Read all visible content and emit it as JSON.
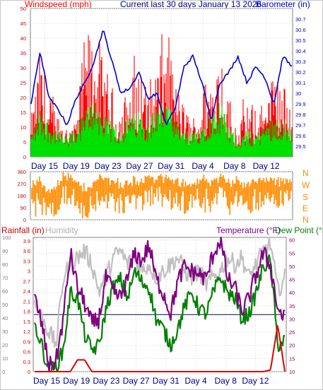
{
  "header": {
    "left_label": "Windspeed (mph)",
    "center_label": "Current last 30 days January 13 2026",
    "right_label": "Barometer (in)"
  },
  "lower_header": {
    "rainfall_label": "Rainfall (in)",
    "humidity_label": "Humidity",
    "temperature_label": "Temperature (°F)",
    "dewpoint_label": "Dew Point (°F)"
  },
  "direction_letters": [
    "N",
    "W",
    "S",
    "E",
    "N"
  ],
  "colors": {
    "wind_gust": "#ff0000",
    "wind_avg": "#00e000",
    "barometer": "#0000cc",
    "direction": "#ff8c00",
    "temperature": "#800080",
    "dewpoint": "#008000",
    "humidity": "#c0c0c0",
    "rainfall": "#e00000",
    "axis_text": "#000080"
  },
  "chart_data": [
    {
      "type": "area",
      "title": "Current last 30 days January 13 2026",
      "x_ticks": [
        "Day 15",
        "Day 19",
        "Day 23",
        "Day 27",
        "Day 31",
        "Day 4",
        "Day 8",
        "Day 12"
      ],
      "left_axis": {
        "label": "Windspeed (mph)",
        "range": [
          0,
          50
        ],
        "ticks": [
          0,
          5,
          10,
          15,
          20,
          25,
          30,
          35,
          40,
          45,
          50
        ]
      },
      "right_axis": {
        "label": "Barometer (in)",
        "range": [
          29.4,
          30.8
        ],
        "ticks": [
          29.5,
          29.6,
          29.7,
          29.8,
          29.9,
          30,
          30.1,
          30.2,
          30.3,
          30.4,
          30.5,
          30.6,
          30.7
        ]
      },
      "series": [
        {
          "name": "Windspeed (mph)",
          "axis": "left",
          "values": [
            13,
            38,
            22,
            17,
            12,
            15,
            42,
            48,
            33,
            24,
            18,
            27,
            31,
            24,
            35,
            47,
            28,
            18,
            14,
            24,
            33,
            43,
            20,
            12,
            18,
            16,
            22,
            30,
            26,
            20
          ]
        },
        {
          "name": "Barometer (in)",
          "axis": "right",
          "values": [
            29.9,
            30.4,
            29.95,
            29.85,
            29.7,
            29.95,
            30.1,
            30.3,
            30.6,
            30.3,
            30.0,
            30.05,
            30.2,
            29.95,
            30.0,
            29.7,
            29.85,
            30.25,
            30.35,
            30.1,
            29.75,
            30.1,
            30.2,
            30.35,
            30.1,
            30.25,
            30.15,
            29.9,
            30.35,
            30.25
          ]
        },
        {
          "name": "",
          "axis": "left",
          "values": [
            6,
            13,
            9,
            7,
            5,
            8,
            12,
            17,
            11,
            9,
            8,
            11,
            12,
            10,
            14,
            16,
            9,
            7,
            6,
            9,
            12,
            15,
            8,
            5,
            7,
            6,
            9,
            11,
            10,
            7
          ]
        }
      ]
    },
    {
      "type": "scatter",
      "title": "",
      "y_range": [
        0,
        360
      ],
      "y_ticks": [
        0,
        90,
        180,
        270,
        360
      ],
      "series": [
        {
          "name": "",
          "values": [
            220,
            250,
            180,
            270,
            300,
            240,
            200,
            260,
            280,
            270,
            230,
            250,
            260,
            300,
            270,
            280,
            260,
            250,
            240,
            270,
            250,
            280,
            260,
            270,
            240,
            250,
            270,
            260,
            250,
            270
          ]
        }
      ]
    },
    {
      "type": "line",
      "title": "",
      "left_axis": {
        "label": "Rainfall (in)",
        "range": [
          0,
          4.0
        ],
        "ticks": [
          0,
          0.3,
          0.6,
          0.9,
          1.2,
          1.5,
          1.8,
          2.1,
          2.4,
          2.7,
          3,
          3.3,
          3.6,
          3.9
        ]
      },
      "humidity_axis": {
        "label": "Humidity",
        "range": [
          0,
          100
        ],
        "ticks": [
          0,
          10,
          20,
          30,
          40,
          50,
          60,
          70,
          80,
          90,
          100
        ]
      },
      "right_axis": {
        "label": "Temperature (°F)",
        "range": [
          10,
          61
        ],
        "ticks": [
          10,
          15,
          20,
          25,
          30,
          35,
          40,
          45,
          50,
          55,
          60
        ]
      },
      "series": [
        {
          "name": "Temperature (°F)",
          "axis": "right",
          "values": [
            38,
            28,
            12,
            14,
            30,
            55,
            42,
            36,
            28,
            30,
            46,
            40,
            38,
            45,
            55,
            52,
            58,
            45,
            40,
            32,
            44,
            50,
            48,
            47,
            45,
            55,
            60,
            45,
            42,
            33,
            38,
            47,
            55,
            50,
            34,
            30
          ]
        },
        {
          "name": "Dew Point (°F)",
          "axis": "right",
          "values": [
            28,
            20,
            10,
            12,
            18,
            40,
            38,
            24,
            18,
            20,
            34,
            42,
            45,
            38,
            48,
            44,
            42,
            30,
            26,
            20,
            26,
            35,
            40,
            34,
            32,
            40,
            46,
            40,
            38,
            30,
            32,
            40,
            50,
            52,
            20,
            22
          ]
        },
        {
          "name": "Humidity",
          "axis": "humidity",
          "values": [
            50,
            40,
            30,
            20,
            70,
            80,
            85,
            90,
            80,
            60,
            70,
            85,
            90,
            80,
            85,
            75,
            80,
            70,
            75,
            80,
            85,
            75,
            70,
            75,
            65,
            70,
            75,
            85,
            80,
            85,
            70,
            80,
            90,
            95,
            60,
            70
          ]
        },
        {
          "name": "Rainfall (in)",
          "axis": "left",
          "values": [
            0,
            0,
            0,
            0,
            0,
            0,
            0.35,
            0.35,
            0,
            0,
            0,
            0,
            0,
            0,
            0,
            0,
            0,
            0,
            0,
            0,
            0,
            0,
            0,
            0,
            0,
            0,
            0,
            0,
            0,
            0,
            0,
            0,
            0,
            0.05,
            1.4,
            0
          ]
        },
        {
          "name": "",
          "axis": "left",
          "values": [
            1.7,
            1.7
          ]
        }
      ]
    }
  ]
}
